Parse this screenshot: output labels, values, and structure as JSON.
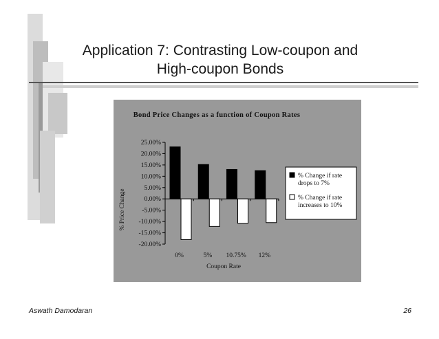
{
  "slide": {
    "title_line1": "Application 7: Contrasting Low-coupon and",
    "title_line2": "High-coupon Bonds",
    "footer_author": "Aswath Damodaran",
    "page_number": "26"
  },
  "chart_data": {
    "type": "bar",
    "title": "Bond Price Changes as a function of Coupon Rates",
    "xlabel": "Coupon Rate",
    "ylabel": "% Price Change",
    "categories": [
      "0%",
      "5%",
      "10.75%",
      "12%"
    ],
    "series": [
      {
        "name": "% Change if rate drops to 7%",
        "values": [
          23.0,
          15.2,
          13.0,
          12.5
        ],
        "color": "#000000"
      },
      {
        "name": "% Change if rate increases to 10%",
        "values": [
          -18.0,
          -12.2,
          -10.8,
          -10.5
        ],
        "color": "#ffffff"
      }
    ],
    "ylim": [
      -20,
      25
    ],
    "yticks": [
      "25.00%",
      "20.00%",
      "15.00%",
      "10.00%",
      "5.00%",
      "0.00%",
      "-5.00%",
      "-10.00%",
      "-15.00%",
      "-20.00%"
    ],
    "ytick_values": [
      25,
      20,
      15,
      10,
      5,
      0,
      -5,
      -10,
      -15,
      -20
    ],
    "legend_position": "right",
    "legend_lines": [
      [
        "% Change if rate",
        "drops to 7%"
      ],
      [
        "% Change if rate",
        "increases to 10%"
      ]
    ],
    "background_color": "#999999",
    "grid": false
  }
}
